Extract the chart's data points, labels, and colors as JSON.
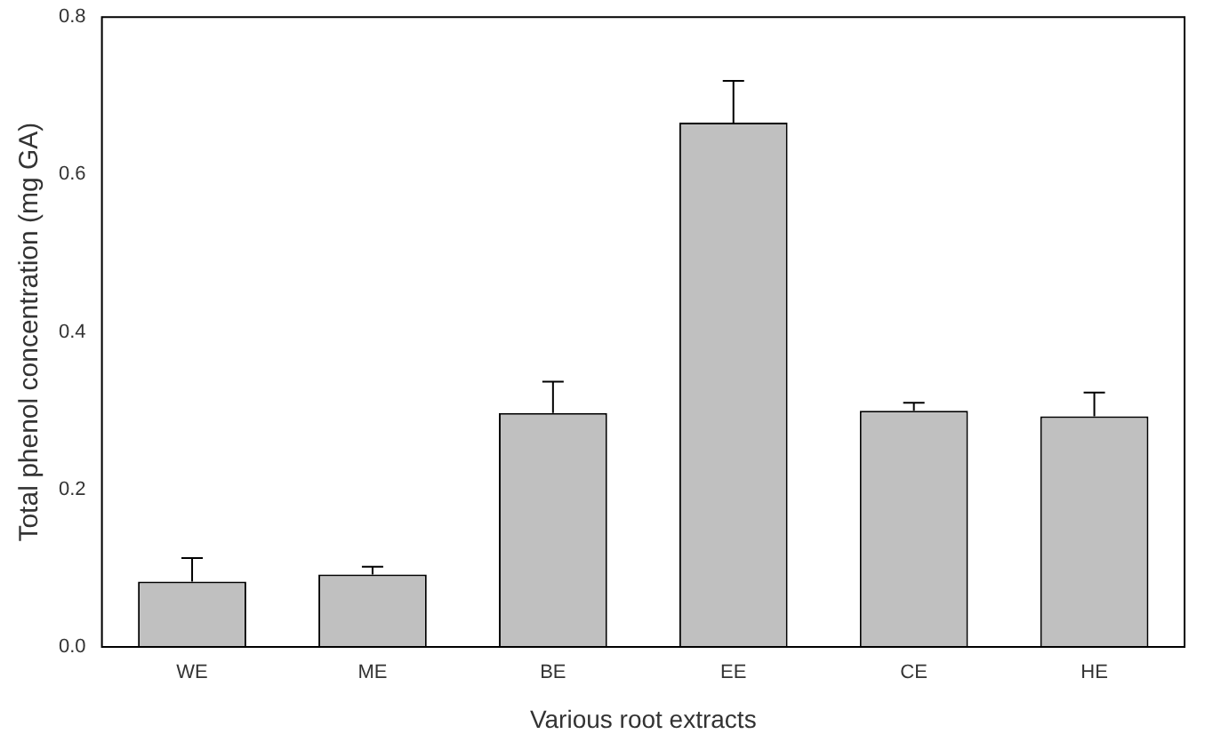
{
  "chart_data": {
    "type": "bar",
    "xlabel": "Various root extracts",
    "ylabel": "Total phenol concentration (mg GA)",
    "categories": [
      "WE",
      "ME",
      "BE",
      "EE",
      "CE",
      "HE"
    ],
    "values": [
      0.083,
      0.092,
      0.297,
      0.666,
      0.3,
      0.293
    ],
    "errors": [
      0.03,
      0.01,
      0.04,
      0.053,
      0.01,
      0.03
    ],
    "color": "#c0c0c0",
    "ylim": [
      0,
      0.8
    ],
    "yticks": [
      {
        "value": 0,
        "label": "0.0"
      },
      {
        "value": 0.2,
        "label": "0.2"
      },
      {
        "value": 0.4,
        "label": "0.4"
      },
      {
        "value": 0.6,
        "label": "0.6"
      },
      {
        "value": 0.8,
        "label": "0.8"
      }
    ],
    "grid": false,
    "legend": false
  }
}
